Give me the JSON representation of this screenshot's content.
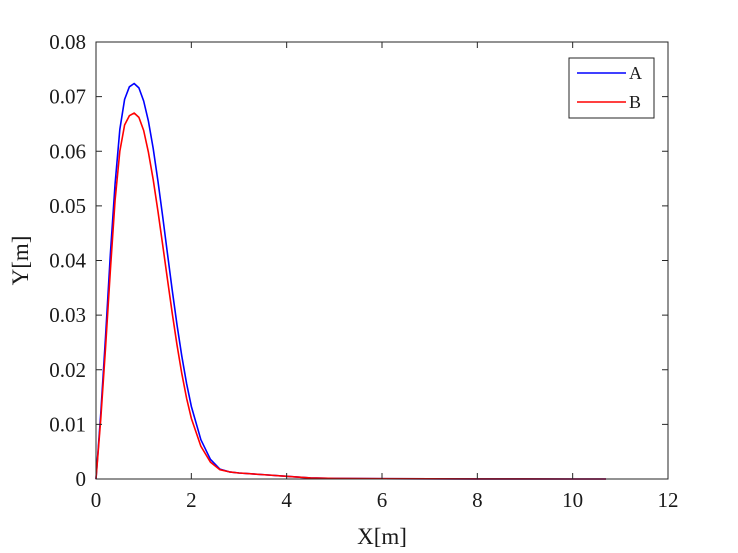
{
  "chart_data": {
    "type": "line",
    "title": "",
    "xlabel": "X[m]",
    "ylabel": "Y[m]",
    "xlim": [
      0,
      12
    ],
    "ylim": [
      0,
      0.08
    ],
    "xticks": [
      0,
      2,
      4,
      6,
      8,
      10,
      12
    ],
    "yticks": [
      0,
      0.01,
      0.02,
      0.03,
      0.04,
      0.05,
      0.06,
      0.07,
      0.08
    ],
    "xtick_labels": [
      "0",
      "2",
      "4",
      "6",
      "8",
      "10",
      "12"
    ],
    "ytick_labels": [
      "0",
      "0.01",
      "0.02",
      "0.03",
      "0.04",
      "0.05",
      "0.06",
      "0.07",
      "0.08"
    ],
    "grid": false,
    "legend_position": "top-right",
    "series": [
      {
        "name": "A",
        "color": "#0000ff",
        "x": [
          0,
          0.1,
          0.2,
          0.3,
          0.4,
          0.5,
          0.6,
          0.7,
          0.8,
          0.9,
          1.0,
          1.1,
          1.2,
          1.3,
          1.4,
          1.5,
          1.6,
          1.7,
          1.8,
          1.9,
          2.0,
          2.2,
          2.4,
          2.6,
          2.8,
          3.0,
          3.5,
          4.0,
          4.5,
          5.0,
          6.0,
          7.0,
          8.0,
          9.0,
          10.0,
          10.7
        ],
        "y": [
          0,
          0.012,
          0.026,
          0.041,
          0.054,
          0.064,
          0.0695,
          0.0718,
          0.0724,
          0.0716,
          0.0692,
          0.0655,
          0.0605,
          0.0545,
          0.048,
          0.0412,
          0.0345,
          0.0282,
          0.0225,
          0.0175,
          0.0133,
          0.0072,
          0.0036,
          0.0018,
          0.0013,
          0.0011,
          0.0008,
          0.0005,
          0.0002,
          0.0001,
          5e-05,
          3e-05,
          2e-05,
          1e-05,
          0.0,
          0.0
        ]
      },
      {
        "name": "B",
        "color": "#ff0000",
        "x": [
          0,
          0.1,
          0.2,
          0.3,
          0.4,
          0.5,
          0.6,
          0.7,
          0.8,
          0.9,
          1.0,
          1.1,
          1.2,
          1.3,
          1.4,
          1.5,
          1.6,
          1.7,
          1.8,
          1.9,
          2.0,
          2.2,
          2.4,
          2.6,
          2.8,
          3.0,
          3.5,
          4.0,
          4.5,
          5.0,
          6.0,
          7.0,
          8.0,
          9.0,
          10.0,
          10.7
        ],
        "y": [
          0,
          0.011,
          0.024,
          0.038,
          0.051,
          0.06,
          0.0648,
          0.0665,
          0.067,
          0.0662,
          0.0638,
          0.0598,
          0.0548,
          0.049,
          0.0428,
          0.0365,
          0.0303,
          0.0245,
          0.0193,
          0.0148,
          0.0111,
          0.006,
          0.0031,
          0.0017,
          0.0013,
          0.0011,
          0.0008,
          0.0005,
          0.0002,
          0.0001,
          5e-05,
          3e-05,
          2e-05,
          1e-05,
          0.0,
          0.0
        ]
      }
    ]
  }
}
